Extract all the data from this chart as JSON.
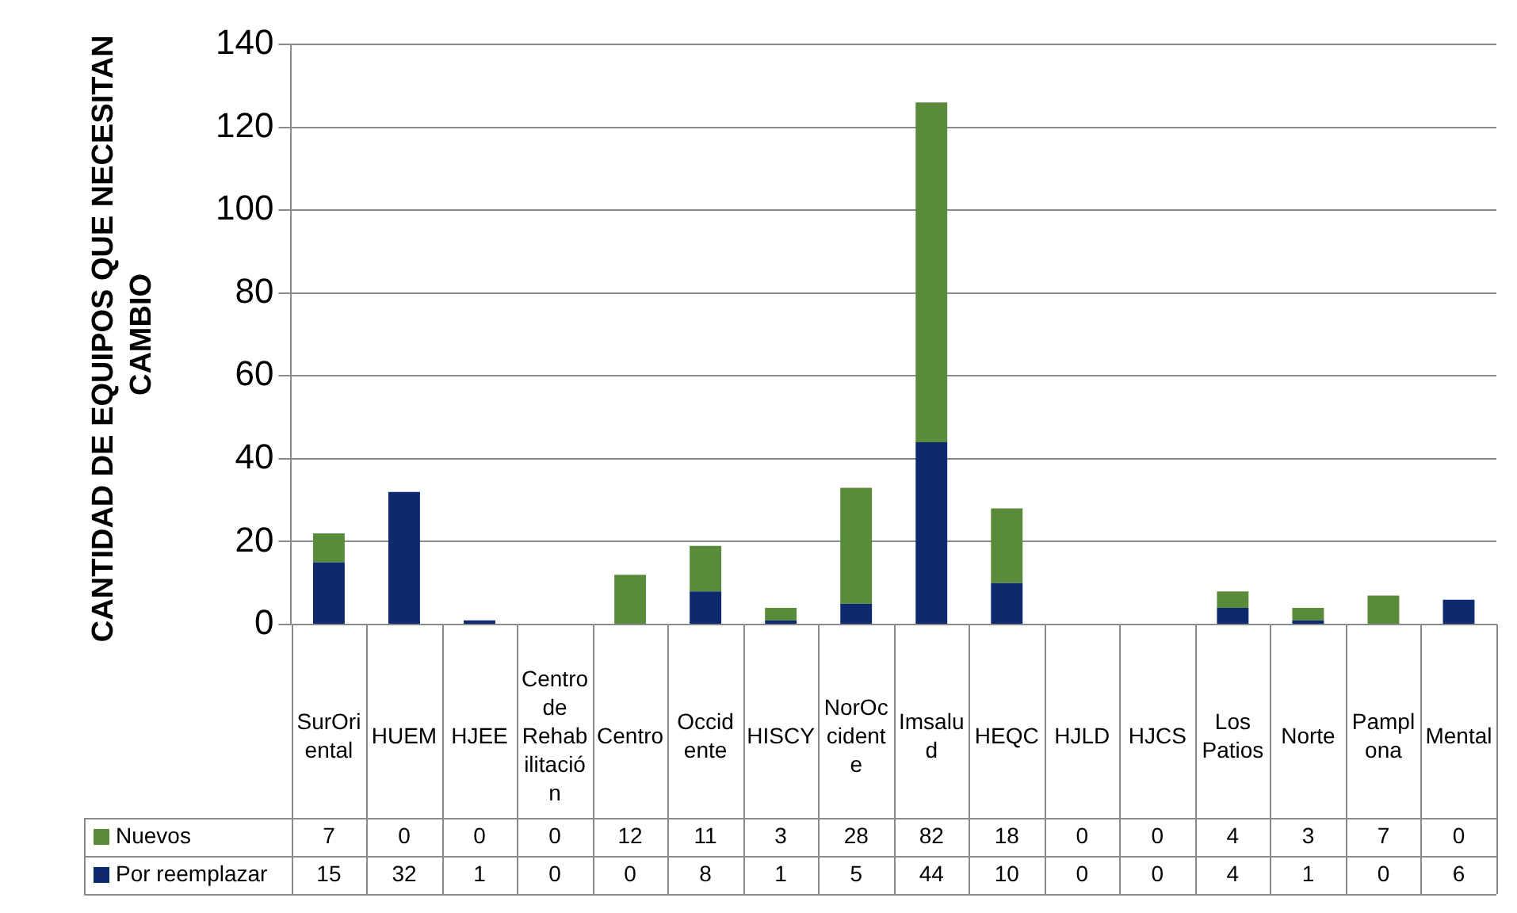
{
  "chart_data": {
    "type": "bar",
    "stacked": true,
    "ylabel": "CANTIDAD DE EQUIPOS QUE NECESITAN  CAMBIO",
    "categories": [
      "SurOriental",
      "HUEM",
      "HJEE",
      "Centro de Rehabilitación",
      "Centro",
      "Occidente",
      "HISCY",
      "NorOccidente",
      "Imsalud",
      "HEQC",
      "HJLD",
      "HJCS",
      "Los Patios",
      "Norte",
      "Pamplona",
      "Mental"
    ],
    "series": [
      {
        "name": "Por reemplazar",
        "color": "#0e2a6e",
        "values": [
          15,
          32,
          1,
          0,
          0,
          8,
          1,
          5,
          44,
          10,
          0,
          0,
          4,
          1,
          0,
          6
        ]
      },
      {
        "name": "Nuevos",
        "color": "#5a8b3a",
        "values": [
          7,
          0,
          0,
          0,
          12,
          11,
          3,
          28,
          82,
          18,
          0,
          0,
          4,
          3,
          7,
          0
        ]
      }
    ],
    "ylim": [
      0,
      140
    ],
    "yticks": [
      0,
      20,
      40,
      60,
      80,
      100,
      120,
      140
    ],
    "grid": "y",
    "legend": "bottom",
    "data_labels": true
  }
}
